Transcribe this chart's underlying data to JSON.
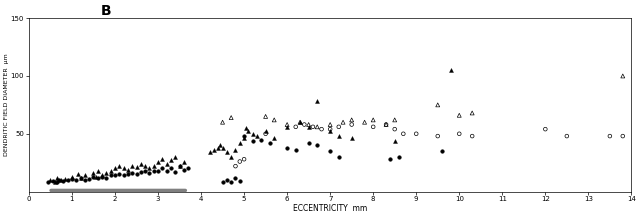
{
  "title": "B",
  "xlabel": "ECCENTRICITY  mm",
  "ylabel": "DENDRITIC FIELD DIAMETER  µm",
  "xlim": [
    0,
    14
  ],
  "ylim": [
    0,
    150
  ],
  "yticks": [
    50,
    100,
    150
  ],
  "xticks": [
    0,
    1,
    2,
    3,
    4,
    5,
    6,
    7,
    8,
    9,
    10,
    11,
    12,
    13,
    14
  ],
  "background_color": "#ffffff",
  "plot_bg": "#ffffff",
  "filled_triangles": [
    [
      0.5,
      10
    ],
    [
      0.6,
      8
    ],
    [
      0.65,
      12
    ],
    [
      0.75,
      10
    ],
    [
      0.85,
      11
    ],
    [
      1.0,
      13
    ],
    [
      1.15,
      15
    ],
    [
      1.2,
      12
    ],
    [
      1.3,
      14
    ],
    [
      1.5,
      16
    ],
    [
      1.55,
      13
    ],
    [
      1.6,
      18
    ],
    [
      1.7,
      14
    ],
    [
      1.8,
      16
    ],
    [
      1.9,
      18
    ],
    [
      2.0,
      20
    ],
    [
      2.1,
      22
    ],
    [
      2.2,
      20
    ],
    [
      2.3,
      19
    ],
    [
      2.4,
      22
    ],
    [
      2.5,
      21
    ],
    [
      2.6,
      24
    ],
    [
      2.7,
      22
    ],
    [
      2.8,
      20
    ],
    [
      2.9,
      22
    ],
    [
      3.0,
      26
    ],
    [
      3.1,
      28
    ],
    [
      3.2,
      24
    ],
    [
      3.3,
      27
    ],
    [
      3.4,
      30
    ],
    [
      3.5,
      22
    ],
    [
      3.6,
      26
    ],
    [
      4.2,
      34
    ],
    [
      4.3,
      36
    ],
    [
      4.4,
      38
    ],
    [
      4.45,
      40
    ],
    [
      4.5,
      38
    ],
    [
      4.6,
      34
    ],
    [
      4.7,
      30
    ],
    [
      4.8,
      36
    ],
    [
      4.9,
      42
    ],
    [
      5.0,
      46
    ],
    [
      5.05,
      55
    ],
    [
      5.1,
      52
    ],
    [
      5.2,
      50
    ],
    [
      5.3,
      48
    ],
    [
      5.5,
      52
    ],
    [
      5.7,
      46
    ],
    [
      6.0,
      56
    ],
    [
      6.3,
      60
    ],
    [
      6.5,
      56
    ],
    [
      6.7,
      78
    ],
    [
      7.0,
      52
    ],
    [
      7.2,
      48
    ],
    [
      7.5,
      46
    ],
    [
      8.5,
      44
    ],
    [
      9.8,
      105
    ]
  ],
  "open_triangles": [
    [
      4.5,
      60
    ],
    [
      4.7,
      64
    ],
    [
      5.5,
      65
    ],
    [
      5.7,
      62
    ],
    [
      6.0,
      58
    ],
    [
      6.3,
      60
    ],
    [
      6.5,
      58
    ],
    [
      6.7,
      56
    ],
    [
      7.0,
      58
    ],
    [
      7.3,
      60
    ],
    [
      7.5,
      62
    ],
    [
      7.8,
      60
    ],
    [
      8.0,
      62
    ],
    [
      8.3,
      58
    ],
    [
      8.5,
      62
    ],
    [
      9.5,
      75
    ],
    [
      10.0,
      66
    ],
    [
      10.3,
      68
    ],
    [
      13.8,
      100
    ]
  ],
  "filled_circles": [
    [
      0.45,
      8
    ],
    [
      0.55,
      9
    ],
    [
      0.65,
      8
    ],
    [
      0.7,
      10
    ],
    [
      0.8,
      9
    ],
    [
      0.9,
      10
    ],
    [
      1.0,
      11
    ],
    [
      1.1,
      10
    ],
    [
      1.2,
      12
    ],
    [
      1.3,
      10
    ],
    [
      1.4,
      11
    ],
    [
      1.5,
      13
    ],
    [
      1.6,
      12
    ],
    [
      1.7,
      13
    ],
    [
      1.8,
      12
    ],
    [
      1.9,
      14
    ],
    [
      2.0,
      14
    ],
    [
      2.1,
      15
    ],
    [
      2.2,
      14
    ],
    [
      2.3,
      15
    ],
    [
      2.4,
      16
    ],
    [
      2.5,
      15
    ],
    [
      2.6,
      17
    ],
    [
      2.7,
      18
    ],
    [
      2.8,
      16
    ],
    [
      2.9,
      18
    ],
    [
      3.0,
      18
    ],
    [
      3.1,
      20
    ],
    [
      3.2,
      18
    ],
    [
      3.3,
      20
    ],
    [
      3.4,
      17
    ],
    [
      3.5,
      22
    ],
    [
      3.6,
      19
    ],
    [
      3.7,
      20
    ],
    [
      4.5,
      8
    ],
    [
      4.6,
      10
    ],
    [
      4.7,
      8
    ],
    [
      4.8,
      12
    ],
    [
      4.9,
      9
    ],
    [
      5.0,
      48
    ],
    [
      5.2,
      44
    ],
    [
      5.4,
      45
    ],
    [
      5.6,
      42
    ],
    [
      6.0,
      38
    ],
    [
      6.2,
      36
    ],
    [
      6.5,
      42
    ],
    [
      6.7,
      40
    ],
    [
      7.0,
      35
    ],
    [
      7.2,
      30
    ],
    [
      8.4,
      28
    ],
    [
      8.6,
      30
    ],
    [
      9.6,
      35
    ]
  ],
  "open_circles": [
    [
      4.8,
      22
    ],
    [
      4.9,
      26
    ],
    [
      5.0,
      28
    ],
    [
      5.5,
      50
    ],
    [
      6.2,
      56
    ],
    [
      6.4,
      58
    ],
    [
      6.6,
      56
    ],
    [
      6.8,
      54
    ],
    [
      7.0,
      54
    ],
    [
      7.2,
      56
    ],
    [
      7.5,
      58
    ],
    [
      8.0,
      56
    ],
    [
      8.3,
      58
    ],
    [
      8.5,
      54
    ],
    [
      8.7,
      50
    ],
    [
      9.0,
      50
    ],
    [
      9.5,
      48
    ],
    [
      10.0,
      50
    ],
    [
      10.3,
      48
    ],
    [
      12.0,
      54
    ],
    [
      12.5,
      48
    ],
    [
      13.5,
      48
    ],
    [
      13.8,
      48
    ]
  ]
}
